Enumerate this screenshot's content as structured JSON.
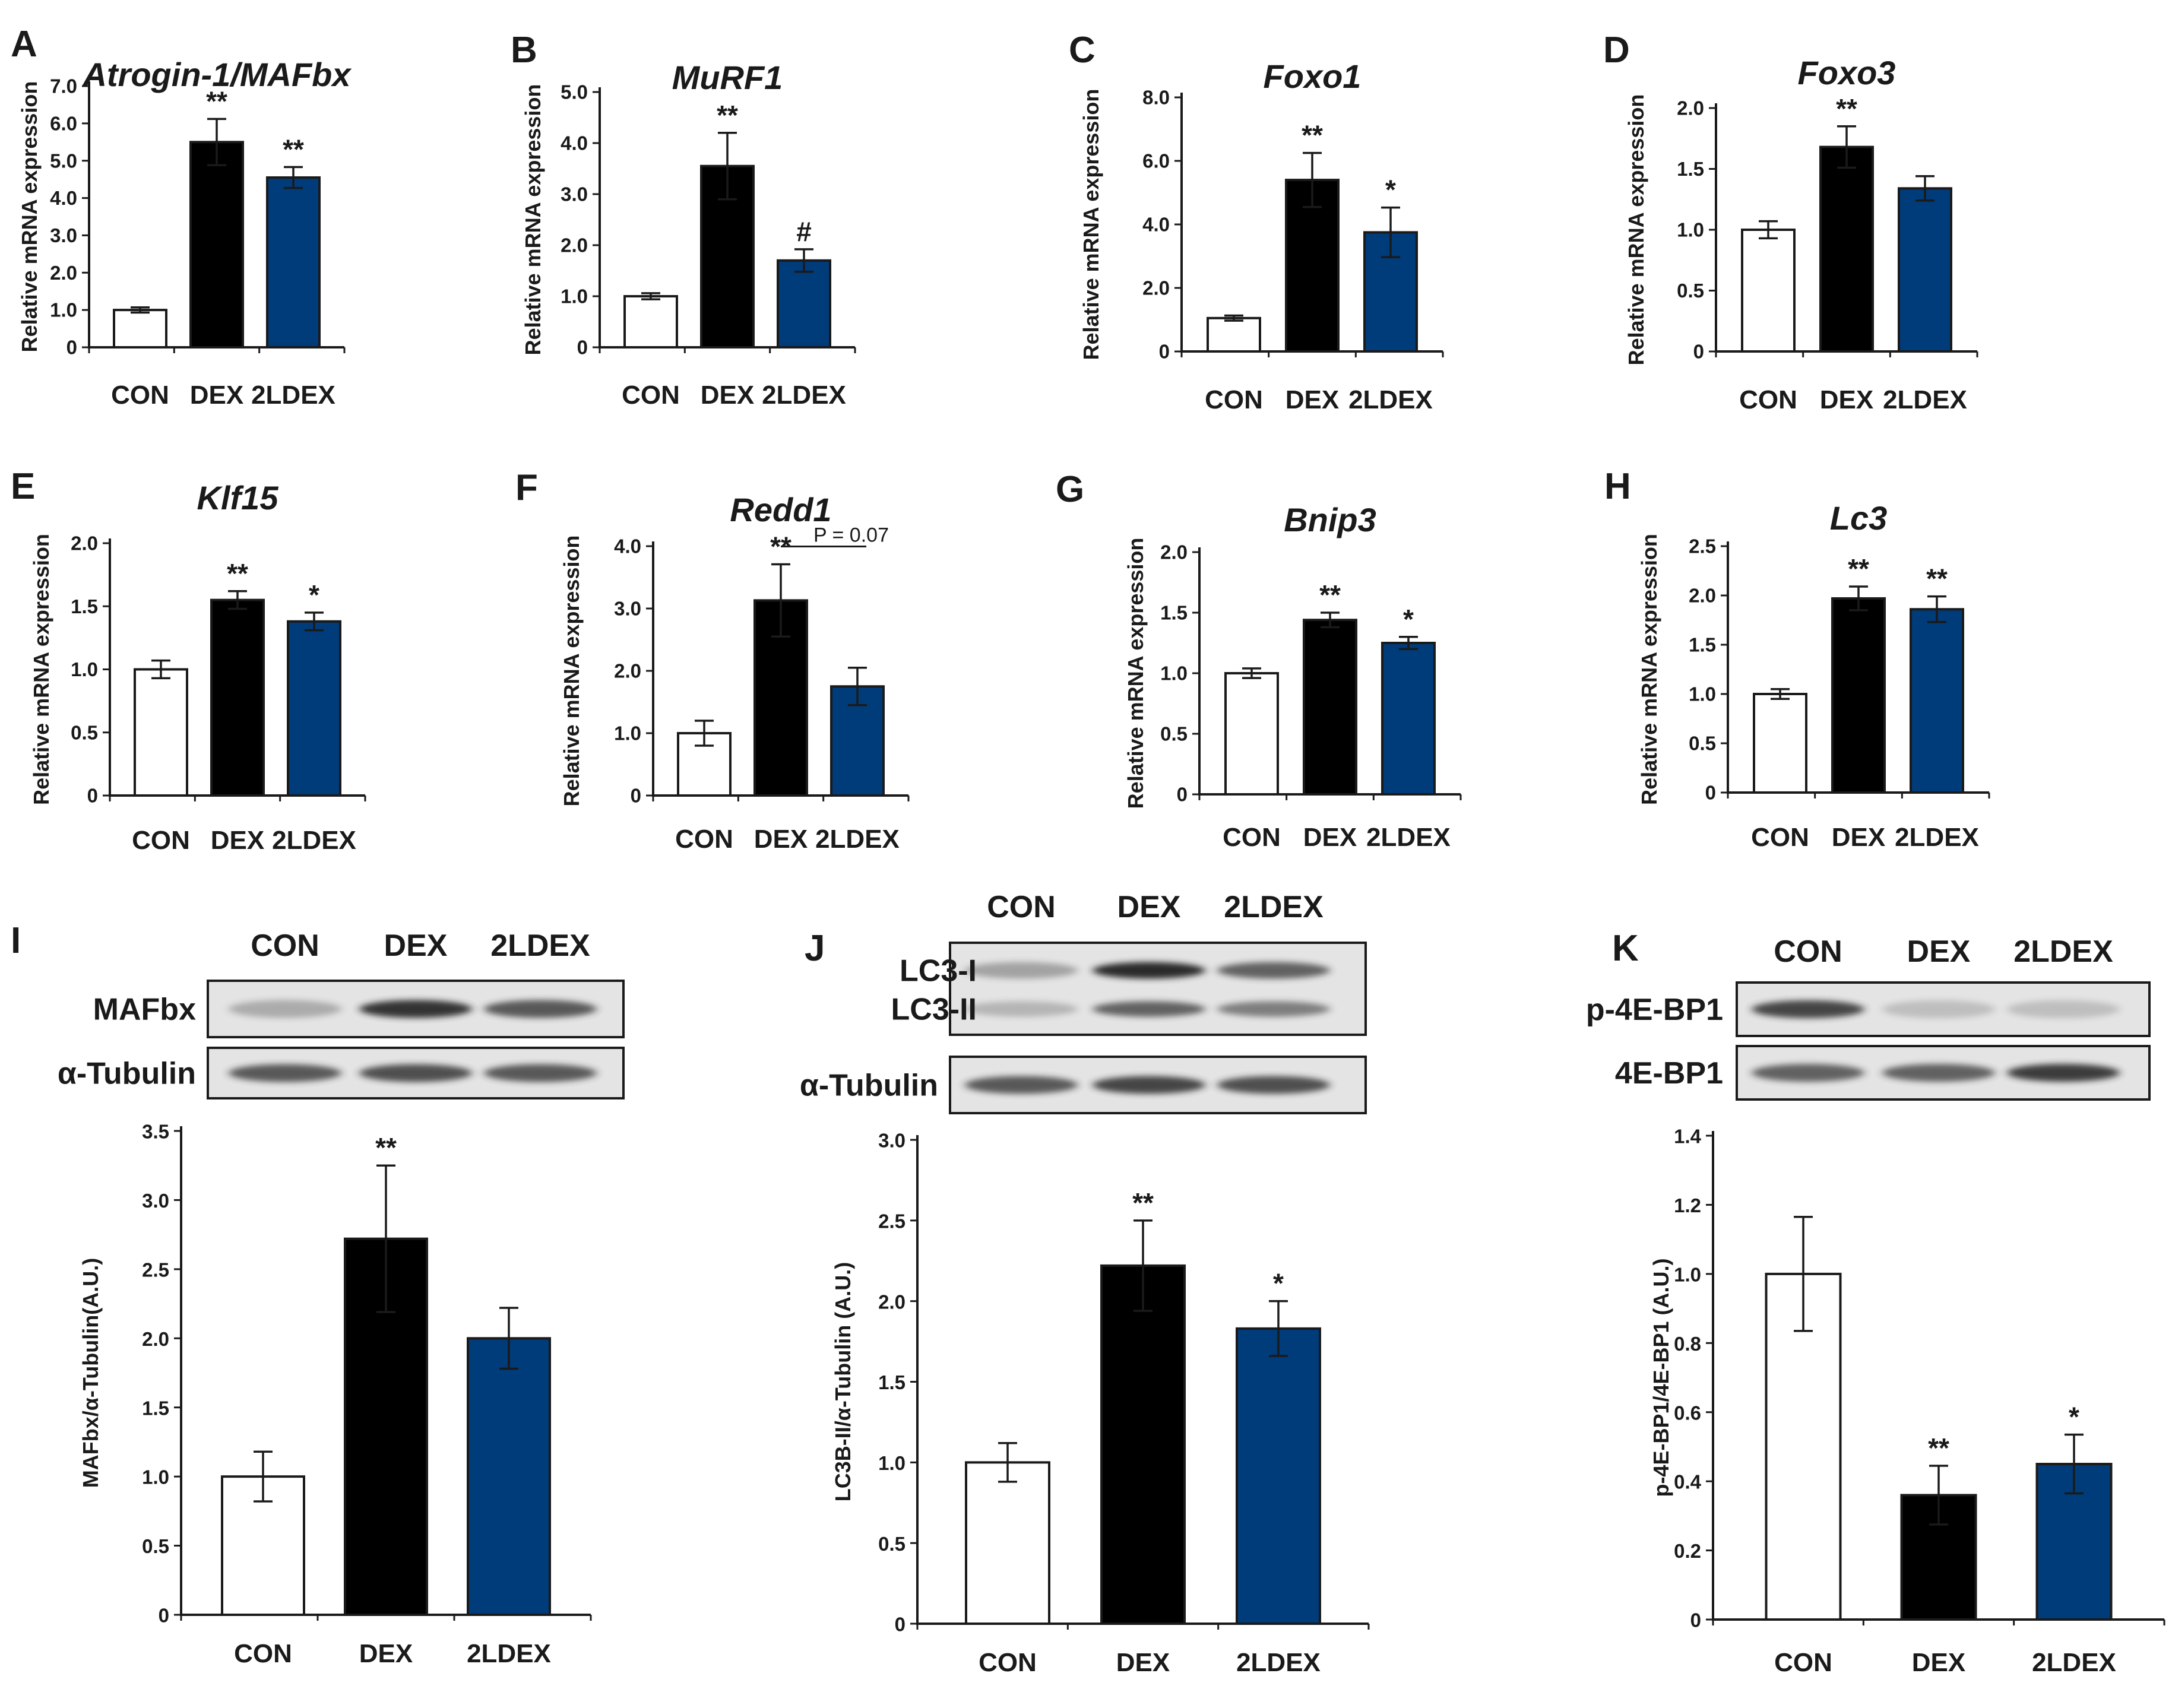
{
  "colors": {
    "CON": "#ffffff",
    "DEX": "#000000",
    "2LDEX": "#003b7a",
    "axis": "#1a1a1a",
    "band": "#2a2a2a"
  },
  "chart_data": [
    {
      "id": "A",
      "type": "bar",
      "title": "Atrogin-1/MAFbx",
      "ylabel": "Relative mRNA expression",
      "categories": [
        "CON",
        "DEX",
        "2LDEX"
      ],
      "values": [
        1.0,
        5.5,
        4.55
      ],
      "errors": [
        0.07,
        0.62,
        0.28
      ],
      "significance": [
        "",
        "**",
        "**"
      ],
      "ylim": [
        0,
        7
      ],
      "yticks": [
        "0",
        "1.0",
        "2.0",
        "3.0",
        "4.0",
        "5.0",
        "6.0",
        "7.0"
      ]
    },
    {
      "id": "B",
      "type": "bar",
      "title": "MuRF1",
      "ylabel": "Relative mRNA expression",
      "categories": [
        "CON",
        "DEX",
        "2LDEX"
      ],
      "values": [
        1.0,
        3.55,
        1.7
      ],
      "errors": [
        0.06,
        0.65,
        0.22
      ],
      "significance": [
        "",
        "**",
        "#"
      ],
      "ylim": [
        0,
        5
      ],
      "yticks": [
        "0",
        "1.0",
        "2.0",
        "3.0",
        "4.0",
        "5.0"
      ]
    },
    {
      "id": "C",
      "type": "bar",
      "title": "Foxo1",
      "ylabel": "Relative mRNA expression",
      "categories": [
        "CON",
        "DEX",
        "2LDEX"
      ],
      "values": [
        1.05,
        5.4,
        3.75
      ],
      "errors": [
        0.08,
        0.85,
        0.78
      ],
      "significance": [
        "",
        "**",
        "*"
      ],
      "ylim": [
        0,
        8
      ],
      "yticks": [
        "0",
        "2.0",
        "4.0",
        "6.0",
        "8.0"
      ]
    },
    {
      "id": "D",
      "type": "bar",
      "title": "Foxo3",
      "ylabel": "Relative mRNA expression",
      "categories": [
        "CON",
        "DEX",
        "2LDEX"
      ],
      "values": [
        1.0,
        1.68,
        1.34
      ],
      "errors": [
        0.07,
        0.17,
        0.1
      ],
      "significance": [
        "",
        "**",
        ""
      ],
      "ylim": [
        0,
        2
      ],
      "yticks": [
        "0",
        "0.5",
        "1.0",
        "1.5",
        "2.0"
      ]
    },
    {
      "id": "E",
      "type": "bar",
      "title": "Klf15",
      "ylabel": "Relative mRNA expression",
      "categories": [
        "CON",
        "DEX",
        "2LDEX"
      ],
      "values": [
        1.0,
        1.55,
        1.38
      ],
      "errors": [
        0.07,
        0.07,
        0.07
      ],
      "significance": [
        "",
        "**",
        "*"
      ],
      "ylim": [
        0,
        2
      ],
      "yticks": [
        "0",
        "0.5",
        "1.0",
        "1.5",
        "2.0"
      ]
    },
    {
      "id": "F",
      "type": "bar",
      "title": "Redd1",
      "ylabel": "Relative mRNA expression",
      "categories": [
        "CON",
        "DEX",
        "2LDEX"
      ],
      "values": [
        1.0,
        3.13,
        1.75
      ],
      "errors": [
        0.2,
        0.58,
        0.3
      ],
      "significance": [
        "",
        "**",
        ""
      ],
      "ylim": [
        0,
        4
      ],
      "yticks": [
        "0",
        "1.0",
        "2.0",
        "3.0",
        "4.0"
      ],
      "annotation": "P = 0.07"
    },
    {
      "id": "G",
      "type": "bar",
      "title": "Bnip3",
      "ylabel": "Relative mRNA expression",
      "categories": [
        "CON",
        "DEX",
        "2LDEX"
      ],
      "values": [
        1.0,
        1.44,
        1.25
      ],
      "errors": [
        0.04,
        0.06,
        0.05
      ],
      "significance": [
        "",
        "**",
        "*"
      ],
      "ylim": [
        0,
        2
      ],
      "yticks": [
        "0",
        "0.5",
        "1.0",
        "1.5",
        "2.0"
      ]
    },
    {
      "id": "H",
      "type": "bar",
      "title": "Lc3",
      "ylabel": "Relative mRNA expression",
      "categories": [
        "CON",
        "DEX",
        "2LDEX"
      ],
      "values": [
        1.0,
        1.97,
        1.86
      ],
      "errors": [
        0.05,
        0.12,
        0.13
      ],
      "significance": [
        "",
        "**",
        "**"
      ],
      "ylim": [
        0,
        2.5
      ],
      "yticks": [
        "0",
        "0.5",
        "1.0",
        "1.5",
        "2.0",
        "2.5"
      ]
    },
    {
      "id": "I",
      "type": "bar",
      "title": "",
      "ylabel": "MAFbx/α-Tubulin(A.U.)",
      "categories": [
        "CON",
        "DEX",
        "2LDEX"
      ],
      "values": [
        1.0,
        2.72,
        2.0
      ],
      "errors": [
        0.18,
        0.53,
        0.22
      ],
      "significance": [
        "",
        "**",
        ""
      ],
      "ylim": [
        0,
        3.5
      ],
      "yticks": [
        "0",
        "0.5",
        "1.0",
        "1.5",
        "2.0",
        "2.5",
        "3.0",
        "3.5"
      ]
    },
    {
      "id": "J",
      "type": "bar",
      "title": "",
      "ylabel": "LC3B-II/α-Tubulin (A.U.)",
      "categories": [
        "CON",
        "DEX",
        "2LDEX"
      ],
      "values": [
        1.0,
        2.22,
        1.83
      ],
      "errors": [
        0.12,
        0.28,
        0.17
      ],
      "significance": [
        "",
        "**",
        "*"
      ],
      "ylim": [
        0,
        3
      ],
      "yticks": [
        "0",
        "0.5",
        "1.0",
        "1.5",
        "2.0",
        "2.5",
        "3.0"
      ]
    },
    {
      "id": "K",
      "type": "bar",
      "title": "",
      "ylabel": "p-4E-BP1/4E-BP1 (A.U.)",
      "categories": [
        "CON",
        "DEX",
        "2LDEX"
      ],
      "values": [
        1.0,
        0.36,
        0.45
      ],
      "errors": [
        0.165,
        0.085,
        0.085
      ],
      "significance": [
        "",
        "**",
        "*"
      ],
      "ylim": [
        0,
        1.4
      ],
      "yticks": [
        "0",
        "0.2",
        "0.4",
        "0.6",
        "0.8",
        "1.0",
        "1.2",
        "1.4"
      ]
    }
  ],
  "blots": [
    {
      "id": "I",
      "lanes": [
        "CON",
        "DEX",
        "2LDEX"
      ],
      "rows": [
        {
          "label": "MAFbx",
          "intensities": [
            0.3,
            0.95,
            0.75
          ]
        },
        {
          "label": "α-Tubulin",
          "intensities": [
            0.75,
            0.8,
            0.75
          ]
        }
      ]
    },
    {
      "id": "J",
      "lanes": [
        "CON",
        "DEX",
        "2LDEX"
      ],
      "rows": [
        {
          "labels": [
            "LC3-I",
            "LC3-II"
          ],
          "intensities": [
            0.35,
            1.0,
            0.7
          ],
          "intensities2": [
            0.25,
            0.7,
            0.55
          ]
        },
        {
          "label": "α-Tubulin",
          "intensities": [
            0.75,
            0.85,
            0.8
          ]
        }
      ]
    },
    {
      "id": "K",
      "lanes": [
        "CON",
        "DEX",
        "2LDEX"
      ],
      "rows": [
        {
          "label": "p-4E-BP1",
          "intensities": [
            0.85,
            0.2,
            0.2
          ]
        },
        {
          "label": "4E-BP1",
          "intensities": [
            0.7,
            0.7,
            0.9
          ]
        }
      ]
    }
  ]
}
